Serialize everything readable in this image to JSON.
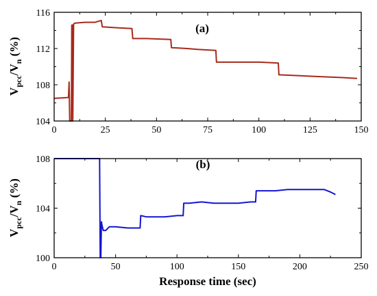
{
  "chart_data": [
    {
      "type": "line",
      "panel_label": "(a)",
      "ylabel": {
        "main1": "V",
        "sub1": "pcc",
        "main2": "/V",
        "sub2": "n",
        "main3": " (%)"
      },
      "xlabel": "",
      "xlim": [
        0,
        150
      ],
      "ylim": [
        104,
        116
      ],
      "xticks": [
        0,
        25,
        50,
        75,
        100,
        125,
        150
      ],
      "yticks": [
        104,
        108,
        112,
        116
      ],
      "series": [
        {
          "color": "#a52a1c",
          "x": [
            0,
            7,
            7.3,
            7.6,
            8,
            8.4,
            8.6,
            9,
            9.1,
            9.5,
            10,
            15,
            20,
            23,
            23.5,
            30,
            38,
            38.4,
            45,
            57,
            57.3,
            65,
            70,
            79,
            79.3,
            90,
            100,
            109.5,
            109.8,
            120,
            130,
            140,
            148
          ],
          "y": [
            106.5,
            106.6,
            108.3,
            104,
            104,
            104,
            114.6,
            114.6,
            104,
            114.7,
            114.8,
            114.9,
            114.9,
            115.1,
            114.4,
            114.3,
            114.2,
            113.1,
            113.1,
            113.0,
            112.1,
            112.0,
            111.9,
            111.8,
            110.5,
            110.5,
            110.5,
            110.4,
            109.1,
            109.0,
            108.9,
            108.8,
            108.7
          ]
        }
      ]
    },
    {
      "type": "line",
      "panel_label": "(b)",
      "ylabel": {
        "main1": "V",
        "sub1": "pcc",
        "main2": "/V",
        "sub2": "n",
        "main3": " (%)"
      },
      "xlabel": "Response time (sec)",
      "xlim": [
        0,
        250
      ],
      "ylim": [
        100,
        108
      ],
      "xticks": [
        0,
        50,
        100,
        150,
        200,
        250
      ],
      "yticks": [
        100,
        104,
        108
      ],
      "series": [
        {
          "color": "#1414d2",
          "x": [
            0,
            10,
            20,
            30,
            37,
            37.5,
            38,
            38.5,
            39,
            40,
            42,
            45,
            50,
            60,
            70,
            70.5,
            75,
            80,
            90,
            100,
            105,
            105.5,
            110,
            120,
            130,
            140,
            150,
            160,
            164,
            164.5,
            170,
            180,
            190,
            200,
            210,
            220,
            225,
            229
          ],
          "y": [
            108.0,
            108.0,
            108.0,
            108.0,
            108.0,
            100,
            100,
            102.9,
            102.6,
            102.2,
            102.2,
            102.5,
            102.5,
            102.4,
            102.4,
            103.4,
            103.3,
            103.3,
            103.3,
            103.4,
            103.4,
            104.4,
            104.4,
            104.5,
            104.4,
            104.4,
            104.4,
            104.5,
            104.5,
            105.4,
            105.4,
            105.4,
            105.5,
            105.5,
            105.5,
            105.5,
            105.3,
            105.1
          ]
        }
      ]
    }
  ]
}
